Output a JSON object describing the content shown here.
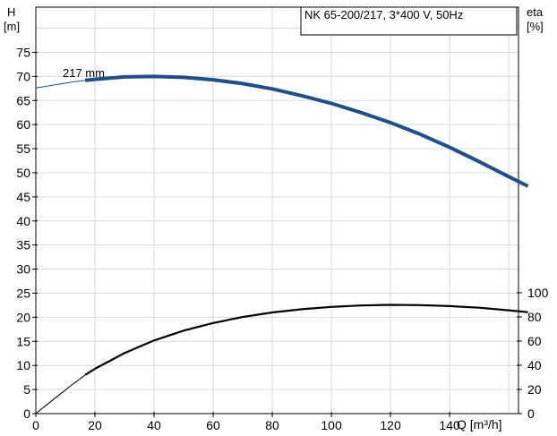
{
  "chart_data": {
    "type": "line",
    "title": "NK 65-200/217, 3*400 V, 50Hz",
    "xlabel": "Q [m³/h]",
    "ylabel_left": [
      "H",
      "[m]"
    ],
    "ylabel_right": [
      "eta",
      "[%]"
    ],
    "xlim": [
      0,
      160
    ],
    "ylim_left": [
      0,
      80
    ],
    "ylim_right": [
      0,
      100
    ],
    "x_ticks": [
      0,
      20,
      40,
      60,
      80,
      100,
      120,
      140
    ],
    "y_ticks_left": [
      0,
      5,
      10,
      15,
      20,
      25,
      30,
      35,
      40,
      45,
      50,
      55,
      60,
      65,
      70,
      75
    ],
    "y_ticks_right": [
      0,
      20,
      40,
      60,
      80,
      100
    ],
    "grid": true,
    "annotation": "217 mm",
    "series": [
      {
        "axis": "left",
        "color": "#1f4e8c",
        "thin_part": {
          "x": [
            0,
            4,
            8,
            12,
            16.7
          ],
          "y": [
            67.6,
            68.0,
            68.4,
            68.8,
            69.2
          ]
        },
        "thick_part": {
          "x": [
            16.7,
            20,
            30,
            40,
            50,
            60,
            70,
            80,
            90,
            100,
            110,
            120,
            130,
            140,
            150,
            160,
            166.5
          ],
          "y": [
            69.2,
            69.4,
            69.9,
            70.0,
            69.8,
            69.3,
            68.5,
            67.4,
            66.0,
            64.4,
            62.5,
            60.4,
            58.0,
            55.3,
            52.3,
            49.2,
            47.2
          ]
        }
      },
      {
        "axis": "right",
        "color": "#000000",
        "thin_part": {
          "x": [
            0,
            4,
            8,
            12,
            16.7
          ],
          "y": [
            0,
            7.9,
            15.7,
            23.3,
            32.0
          ]
        },
        "thick_part": {
          "x": [
            16.7,
            20,
            30,
            40,
            50,
            60,
            70,
            80,
            90,
            100,
            110,
            120,
            130,
            140,
            150,
            160,
            166.5
          ],
          "y": [
            32.0,
            37.1,
            50.1,
            60.5,
            68.7,
            75.0,
            79.9,
            83.7,
            86.4,
            88.3,
            89.5,
            90.0,
            89.8,
            89.0,
            87.6,
            85.5,
            83.9
          ]
        }
      }
    ]
  }
}
